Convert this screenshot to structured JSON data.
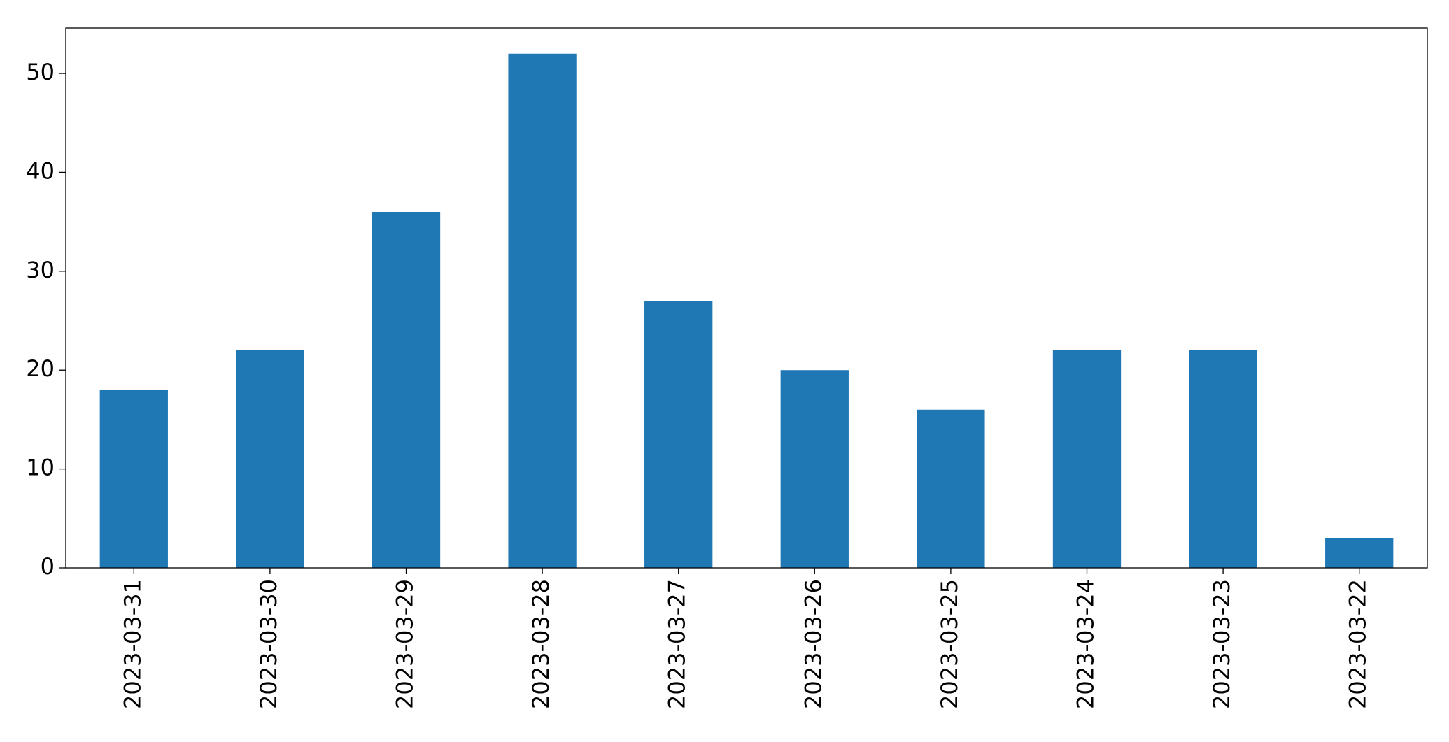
{
  "chart_data": {
    "type": "bar",
    "categories": [
      "2023-03-31",
      "2023-03-30",
      "2023-03-29",
      "2023-03-28",
      "2023-03-27",
      "2023-03-26",
      "2023-03-25",
      "2023-03-24",
      "2023-03-23",
      "2023-03-22"
    ],
    "values": [
      18,
      22,
      36,
      52,
      27,
      20,
      16,
      22,
      22,
      3
    ],
    "color": "#1f77b4",
    "ylim": [
      0,
      54.6
    ],
    "yticks": [
      0,
      10,
      20,
      30,
      40,
      50
    ],
    "grid": false
  }
}
